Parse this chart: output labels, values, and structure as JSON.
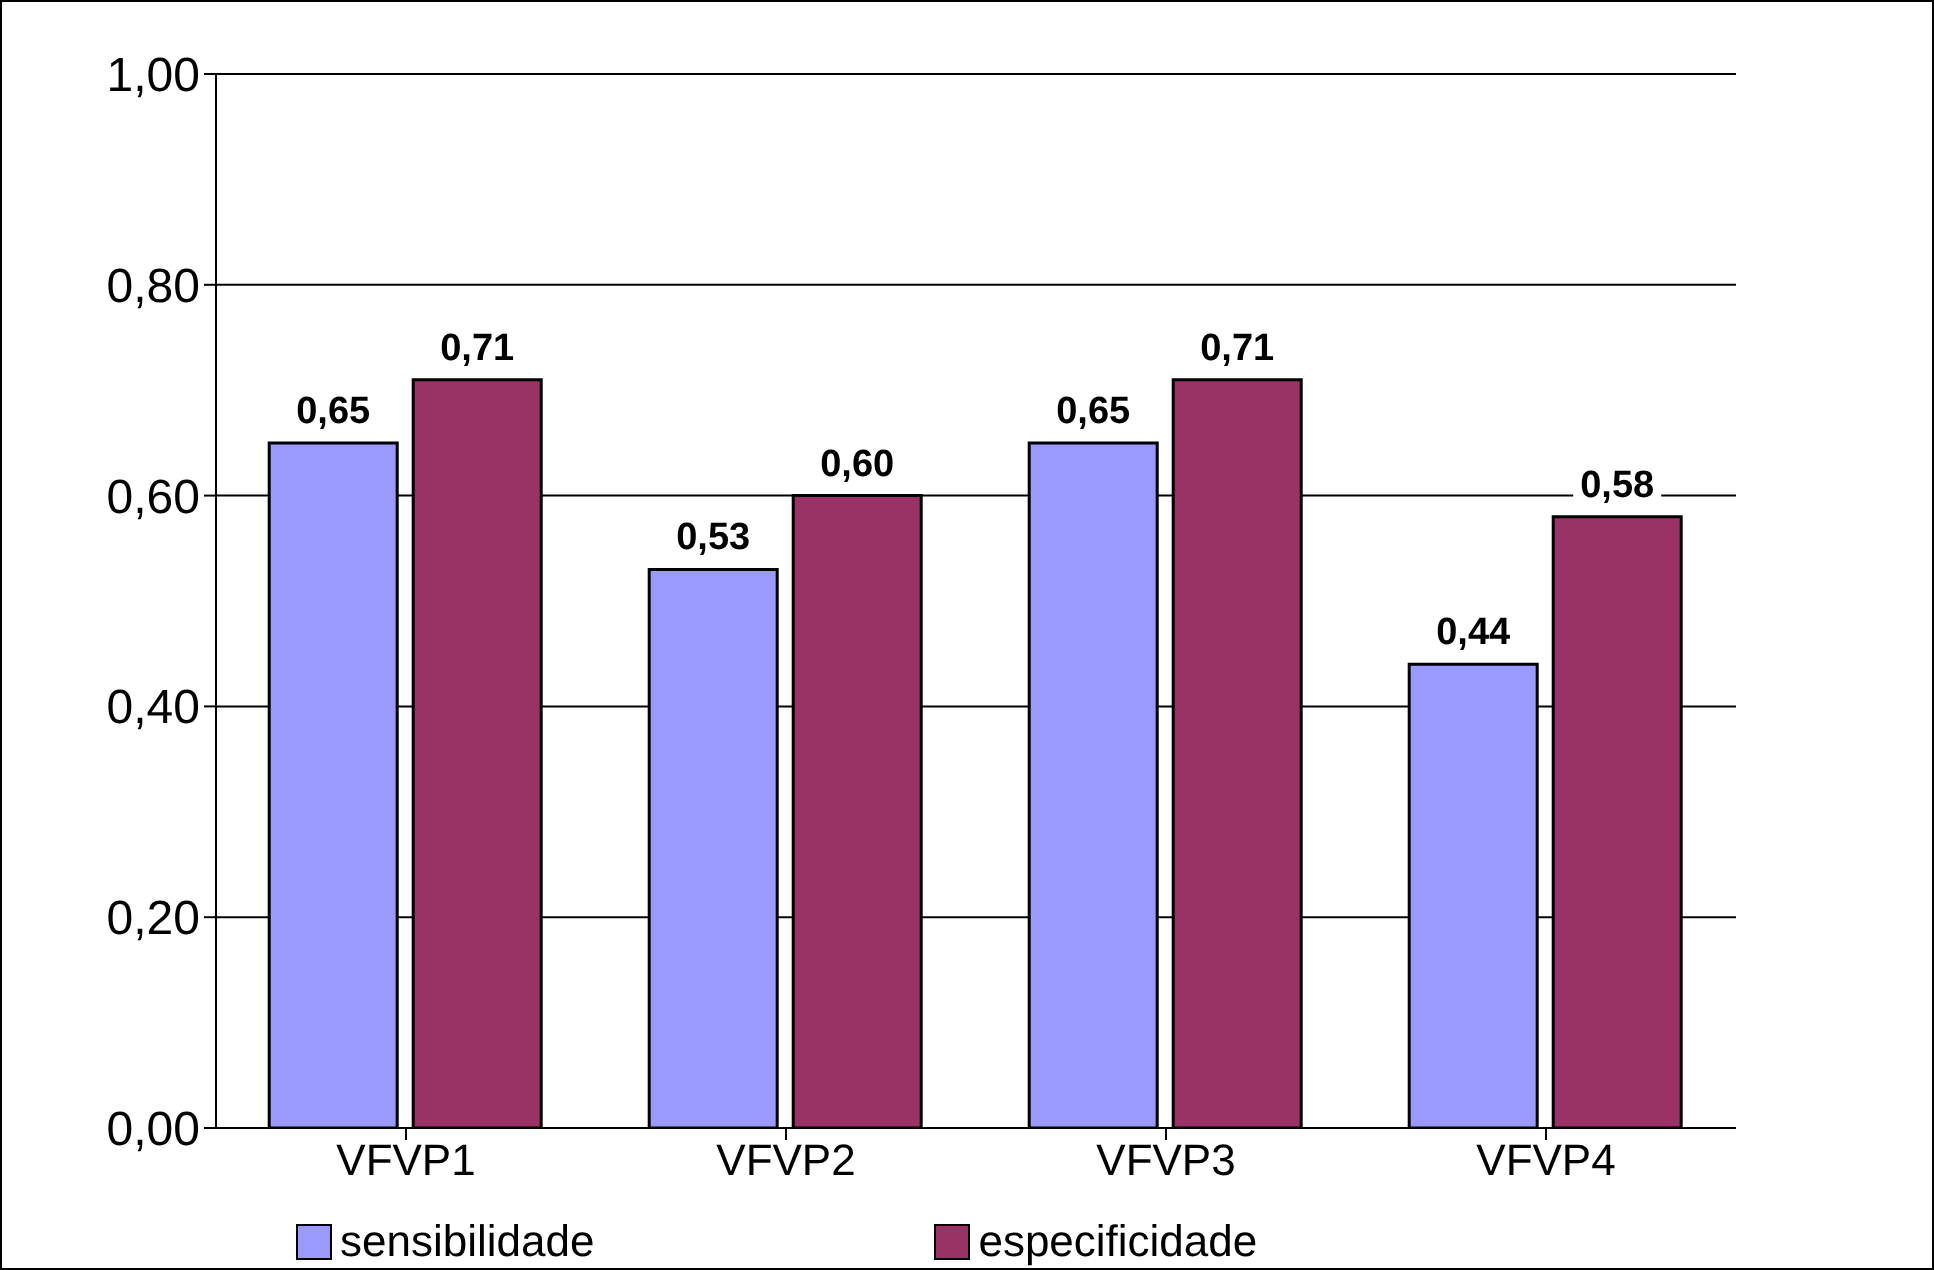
{
  "chart_data": {
    "type": "bar",
    "categories": [
      "VFVP1",
      "VFVP2",
      "VFVP3",
      "VFVP4"
    ],
    "series": [
      {
        "name": "sensibilidade",
        "color": "#9999ff",
        "values": [
          0.65,
          0.53,
          0.65,
          0.44
        ],
        "value_labels": [
          "0,65",
          "0,53",
          "0,65",
          "0,44"
        ]
      },
      {
        "name": "especificidade",
        "color": "#993366",
        "values": [
          0.71,
          0.6,
          0.71,
          0.58
        ],
        "value_labels": [
          "0,71",
          "0,60",
          "0,71",
          "0,58"
        ]
      }
    ],
    "ylim": [
      0,
      1
    ],
    "yticks": [
      {
        "value": 0,
        "label": "0,00"
      },
      {
        "value": 0.2,
        "label": "0,20"
      },
      {
        "value": 0.4,
        "label": "0,40"
      },
      {
        "value": 0.6,
        "label": "0,60"
      },
      {
        "value": 0.8,
        "label": "0,80"
      },
      {
        "value": 1,
        "label": "1,00"
      }
    ],
    "grid": "y",
    "legend": "bottom"
  }
}
